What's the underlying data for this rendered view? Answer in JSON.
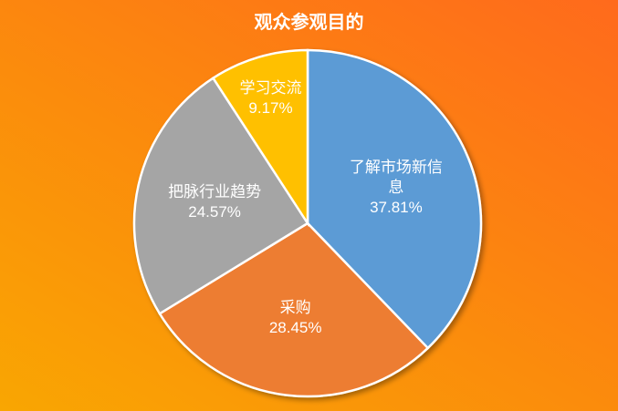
{
  "chart_data": {
    "type": "pie",
    "title": "观众参观目的",
    "categories": [
      "了解市场新信息",
      "采购",
      "把脉行业趋势",
      "学习交流"
    ],
    "values": [
      37.81,
      28.45,
      24.57,
      9.17
    ],
    "value_labels": [
      "37.81%",
      "28.45%",
      "24.57%",
      "9.17%"
    ],
    "colors": [
      "#5b9bd5",
      "#ed7d31",
      "#a5a5a5",
      "#ffc000"
    ]
  }
}
